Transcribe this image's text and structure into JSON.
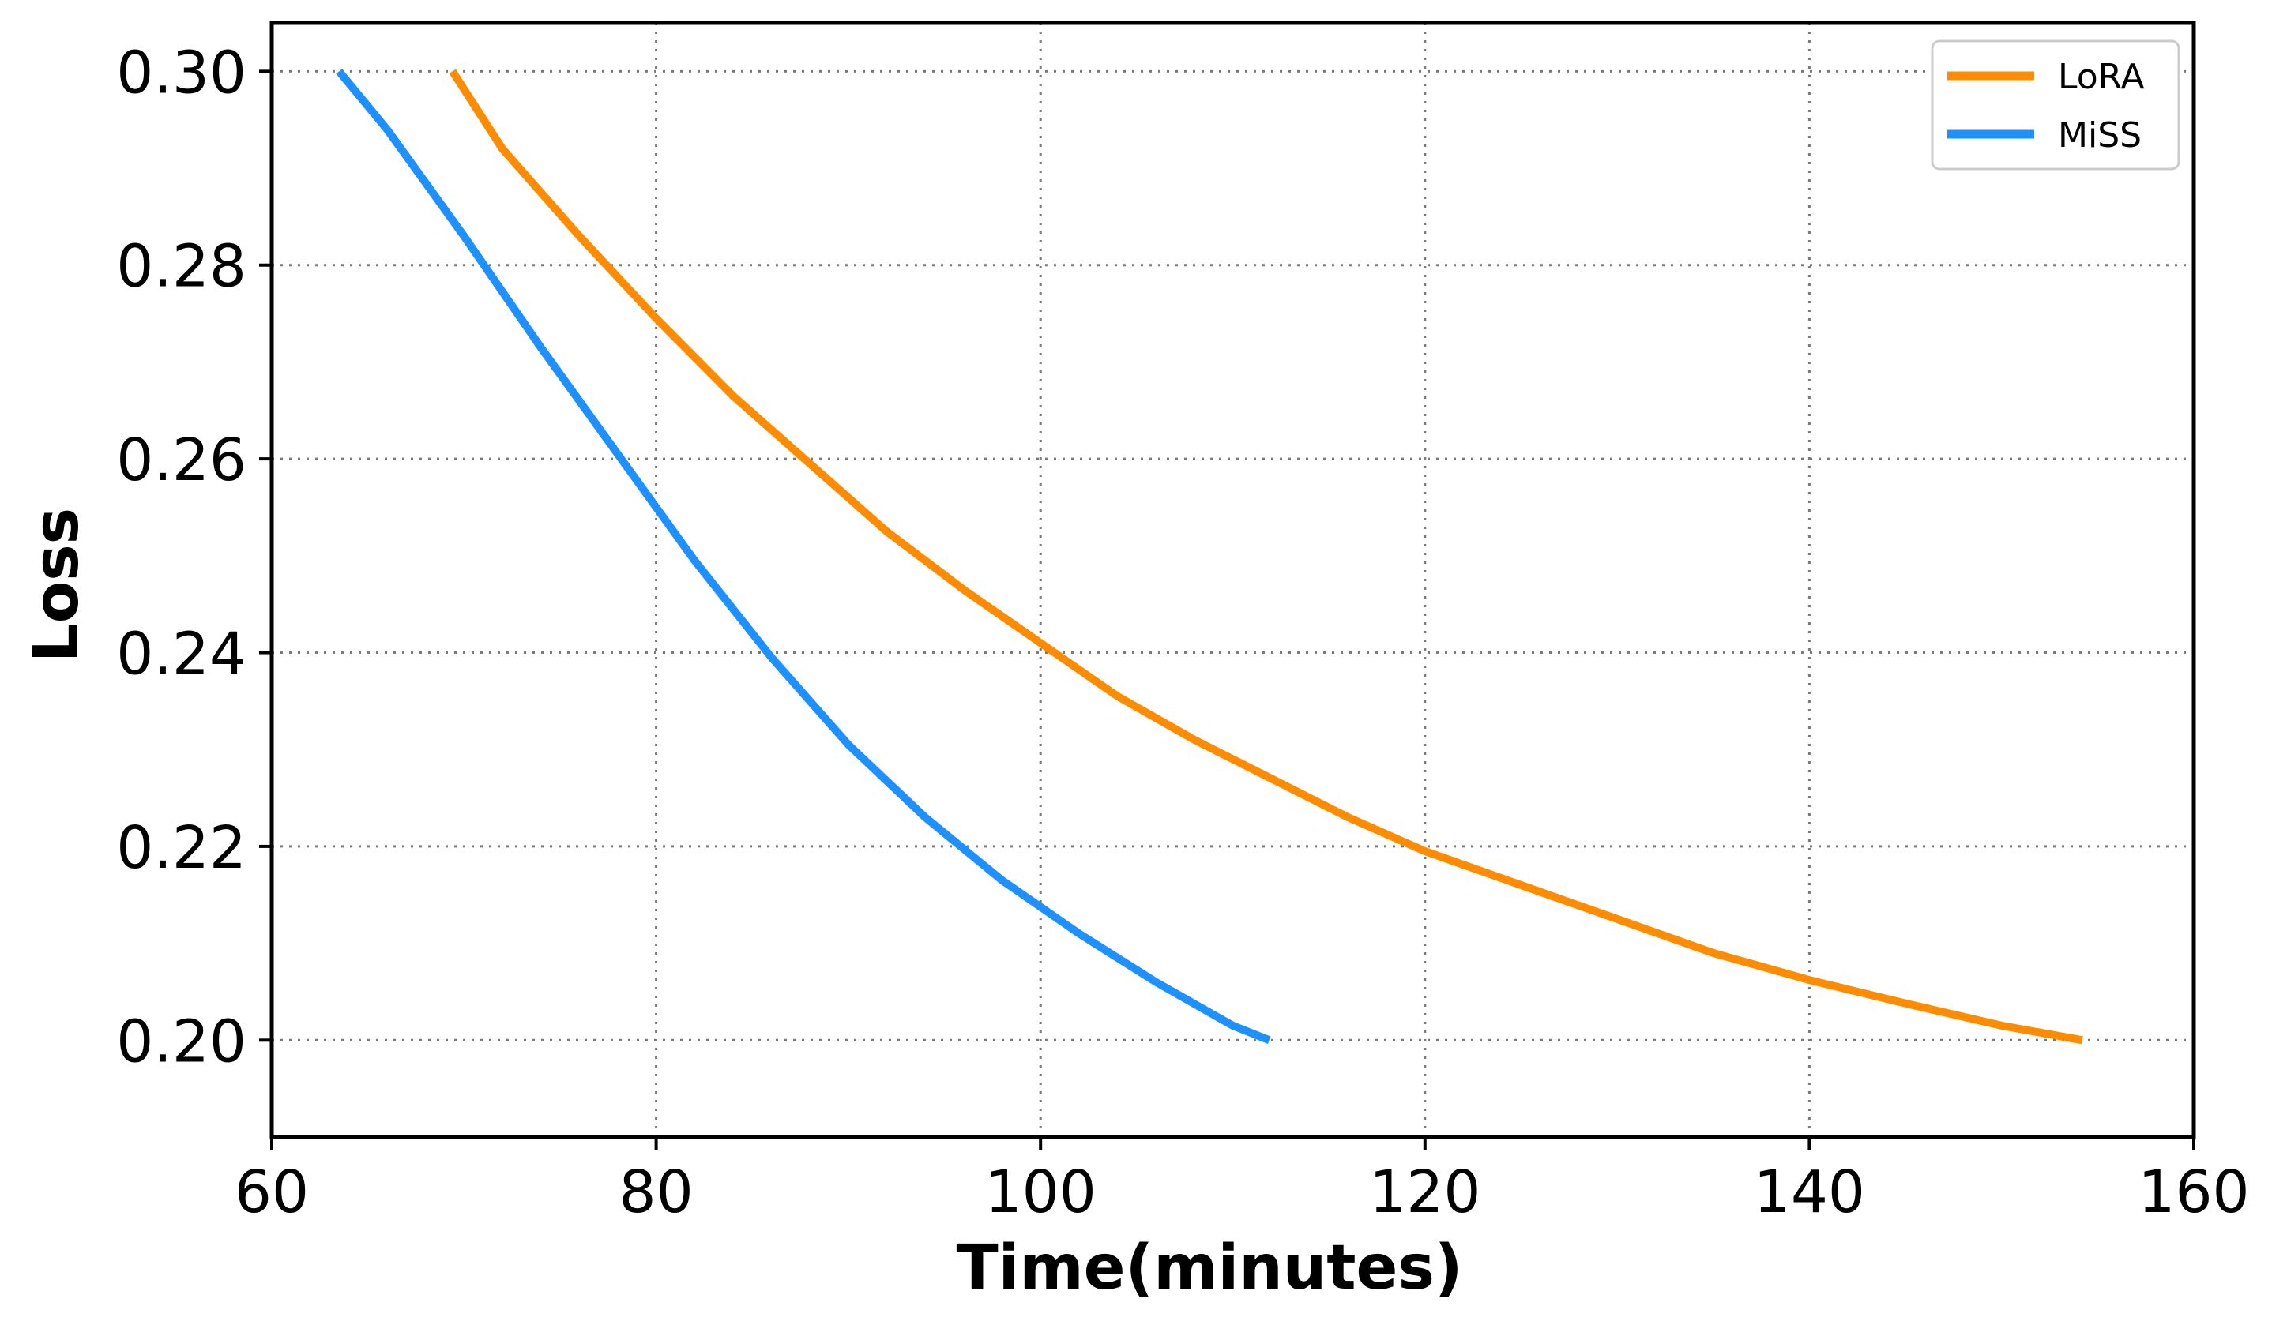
{
  "chart_data": {
    "type": "line",
    "xlabel": "Time(minutes)",
    "ylabel": "Loss",
    "xlim": [
      60,
      160
    ],
    "ylim": [
      0.19,
      0.305
    ],
    "x_ticks": [
      60,
      80,
      100,
      120,
      140,
      160
    ],
    "x_tick_labels": [
      "60",
      "80",
      "100",
      "120",
      "140",
      "160"
    ],
    "y_ticks": [
      0.2,
      0.22,
      0.24,
      0.26,
      0.28,
      0.3
    ],
    "y_tick_labels": [
      "0.20",
      "0.22",
      "0.24",
      "0.26",
      "0.28",
      "0.30"
    ],
    "grid": true,
    "legend_position": "top-right",
    "series": [
      {
        "name": "LoRA",
        "color": "#ff8c00",
        "x": [
          69.4,
          72,
          76,
          80,
          84,
          88,
          92,
          96,
          100,
          104,
          108,
          112,
          116,
          120,
          125,
          130,
          135,
          140,
          145,
          150,
          154.2
        ],
        "y": [
          0.3,
          0.292,
          0.283,
          0.2745,
          0.2665,
          0.2595,
          0.2525,
          0.2465,
          0.241,
          0.2355,
          0.231,
          0.227,
          0.223,
          0.2195,
          0.216,
          0.2125,
          0.209,
          0.2062,
          0.2038,
          0.2015,
          0.2
        ]
      },
      {
        "name": "MiSS",
        "color": "#1e90ff",
        "x": [
          63.5,
          66,
          70,
          74,
          78,
          82,
          86,
          90,
          94,
          98,
          102,
          106,
          110,
          111.9
        ],
        "y": [
          0.3,
          0.294,
          0.283,
          0.2715,
          0.2605,
          0.2495,
          0.2395,
          0.2305,
          0.223,
          0.2165,
          0.211,
          0.206,
          0.2015,
          0.2
        ]
      }
    ]
  }
}
